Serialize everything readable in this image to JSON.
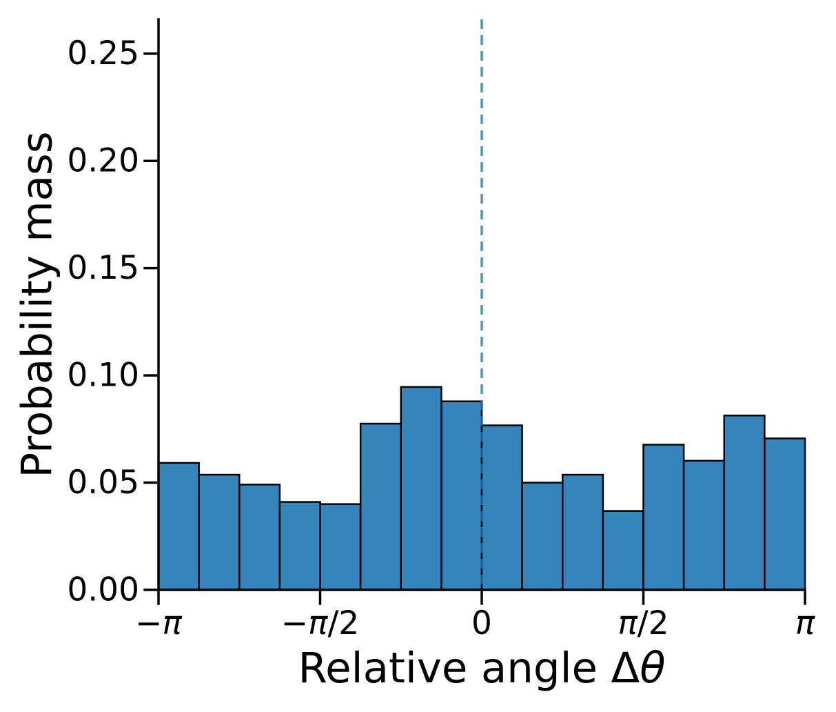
{
  "figure": {
    "background": "#ffffff",
    "title": ""
  },
  "colors": {
    "bar_fill": "#3585bc",
    "bar_edge": "#000000",
    "zero_line": "#1f77b4",
    "zero_line_alpha": 0.8,
    "axis": "#000000",
    "text": "#000000"
  },
  "chart_data": {
    "type": "bar",
    "subtype": "histogram",
    "title": "",
    "xlabel": "Relative angle Δθ",
    "ylabel": "Probability mass",
    "x_unit": "radians",
    "bins": 16,
    "bin_range": [
      -3.14159,
      3.14159
    ],
    "values": [
      0.0592,
      0.0537,
      0.0491,
      0.041,
      0.04,
      0.0775,
      0.0946,
      0.0879,
      0.0767,
      0.05,
      0.0537,
      0.0368,
      0.0677,
      0.0602,
      0.0813,
      0.0706
    ],
    "x_ticks": [
      {
        "label": "−π",
        "value": -3.14159,
        "pos": 0.0
      },
      {
        "label": "−π/2",
        "value": -1.5708,
        "pos": 0.25
      },
      {
        "label": "0",
        "value": 0,
        "pos": 0.5
      },
      {
        "label": "π/2",
        "value": 1.5708,
        "pos": 0.75
      },
      {
        "label": "π",
        "value": 3.14159,
        "pos": 1.0
      }
    ],
    "y_ticks": [
      {
        "label": "0.00",
        "value": 0.0
      },
      {
        "label": "0.05",
        "value": 0.05
      },
      {
        "label": "0.10",
        "value": 0.1
      },
      {
        "label": "0.15",
        "value": 0.15
      },
      {
        "label": "0.20",
        "value": 0.2
      },
      {
        "label": "0.25",
        "value": 0.25
      }
    ],
    "ylim": [
      0,
      0.266
    ],
    "grid": false,
    "legend": null,
    "vline": {
      "x_value": 0,
      "pos": 0.5,
      "style": "dashed"
    }
  }
}
